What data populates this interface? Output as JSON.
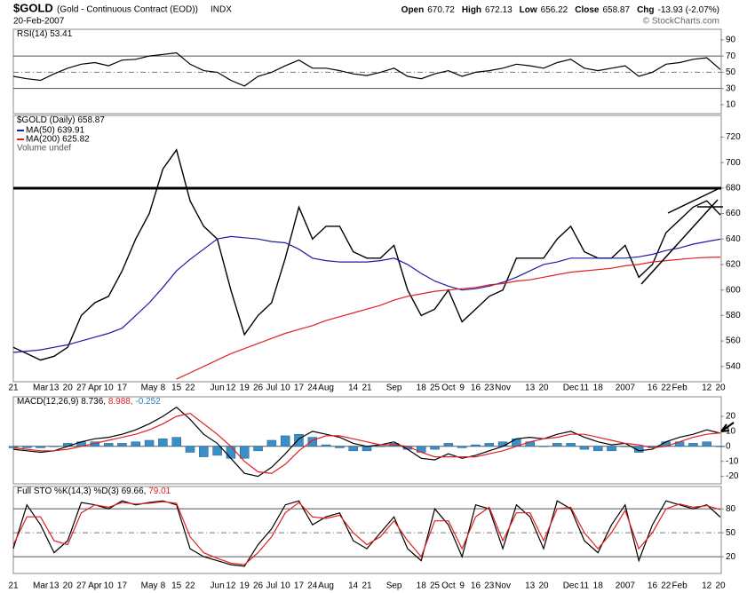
{
  "header": {
    "symbol": "$GOLD",
    "name": "(Gold - Continuous Contract (EOD))",
    "exchange": "INDX",
    "date": "20-Feb-2007",
    "copyright": "© StockCharts.com",
    "quote": [
      {
        "label": "Open",
        "value": "670.72"
      },
      {
        "label": "High",
        "value": "672.13"
      },
      {
        "label": "Low",
        "value": "656.22"
      },
      {
        "label": "Close",
        "value": "658.87"
      },
      {
        "label": "Chg",
        "value": "-13.93 (-2.07%)"
      }
    ]
  },
  "chart_data": [
    {
      "type": "line",
      "legend_parts": [
        {
          "text": "RSI(14) 53.41",
          "color": "#000000"
        }
      ],
      "ylim": [
        -1,
        103
      ],
      "yticks": [
        90,
        70,
        50,
        30,
        10
      ],
      "solid_lines": [
        70,
        30
      ],
      "dashed_lines": [
        50
      ],
      "series": [
        {
          "color": "#000000",
          "values": [
            45,
            42,
            40,
            48,
            55,
            60,
            62,
            58,
            65,
            66,
            70,
            72,
            74,
            60,
            52,
            50,
            40,
            33,
            45,
            50,
            58,
            65,
            55,
            55,
            52,
            48,
            46,
            50,
            55,
            45,
            42,
            48,
            52,
            45,
            50,
            52,
            55,
            60,
            58,
            55,
            62,
            66,
            55,
            52,
            55,
            58,
            45,
            50,
            60,
            62,
            66,
            68,
            53.41
          ]
        }
      ]
    },
    {
      "type": "line",
      "legend_parts": [
        {
          "text": "$GOLD (Daily) 658.87",
          "color": "#000000"
        }
      ],
      "note": "Volume undef",
      "ylim": [
        528,
        737
      ],
      "yticks": [
        720,
        700,
        680,
        660,
        640,
        620,
        600,
        580,
        560,
        540
      ],
      "categories": [
        "21",
        null,
        "Mar",
        "13",
        "20",
        "27",
        "Apr",
        "10",
        "17",
        null,
        "May",
        "8",
        "15",
        "22",
        null,
        "Jun",
        "12",
        "19",
        "26",
        "Jul",
        "10",
        "17",
        "24",
        "Aug",
        null,
        "14",
        "21",
        null,
        "Sep",
        null,
        "18",
        "25",
        "Oct",
        "9",
        "16",
        "23",
        "Nov",
        null,
        "13",
        "20",
        null,
        "Dec",
        "11",
        "18",
        null,
        "2007",
        null,
        "16",
        "22",
        "Feb",
        null,
        "12",
        "20"
      ],
      "series": [
        {
          "color": "#000000",
          "values": [
            555,
            550,
            545,
            548,
            555,
            580,
            590,
            595,
            615,
            640,
            660,
            695,
            710,
            670,
            650,
            640,
            600,
            565,
            580,
            590,
            625,
            665,
            640,
            650,
            650,
            630,
            625,
            625,
            635,
            600,
            580,
            585,
            600,
            575,
            585,
            595,
            600,
            625,
            625,
            625,
            640,
            650,
            630,
            625,
            625,
            635,
            610,
            620,
            645,
            655,
            665,
            670,
            658.87
          ]
        },
        {
          "name": "MA(50) 639.91",
          "color": "#1c1ca0",
          "values": [
            551,
            552,
            553,
            555,
            557,
            560,
            563,
            566,
            570,
            580,
            590,
            602,
            615,
            624,
            632,
            640,
            642,
            641,
            640,
            638,
            637,
            632,
            625,
            623,
            622,
            622,
            622,
            623,
            625,
            620,
            613,
            607,
            603,
            600,
            601,
            603,
            606,
            610,
            615,
            620,
            622,
            625,
            625,
            625,
            625,
            625,
            626,
            628,
            631,
            633,
            636,
            638,
            639.91
          ]
        },
        {
          "name": "MA(200) 625.82",
          "color": "#e02020",
          "values": [
            null,
            null,
            null,
            null,
            null,
            null,
            null,
            null,
            null,
            null,
            null,
            null,
            530,
            535,
            540,
            545,
            550,
            554,
            558,
            562,
            566,
            569,
            572,
            576,
            579,
            582,
            585,
            588,
            592,
            595,
            597,
            599,
            600,
            601,
            602,
            604,
            605,
            607,
            608,
            610,
            612,
            614,
            615,
            616,
            617,
            619,
            620,
            622,
            623,
            624,
            625,
            625.5,
            625.82
          ]
        }
      ]
    },
    {
      "type": "line",
      "legend_parts": [
        {
          "text": "MACD(12,26,9) 8.736,",
          "color": "#000000"
        },
        {
          "text": " 8.988,",
          "color": "#e02020"
        },
        {
          "text": " -0.252",
          "color": "#2a7fc0"
        }
      ],
      "ylim": [
        -25,
        33
      ],
      "yticks": [
        20,
        10,
        0,
        -10,
        -20
      ],
      "solid_lines": [
        0
      ],
      "series": [
        {
          "type": "bar",
          "color": "#3a8fc8",
          "values": [
            -1,
            -1,
            -1,
            0,
            2,
            3,
            3,
            2,
            2,
            3,
            4,
            5,
            6,
            -4,
            -7,
            -6,
            -8,
            -8,
            -3,
            4,
            7,
            8,
            6,
            1,
            -1,
            -3,
            -3,
            0,
            2,
            -2,
            -4,
            -2,
            2,
            -1,
            1,
            2,
            3,
            5,
            3,
            0,
            2,
            2,
            -2,
            -3,
            -3,
            0,
            -4,
            -1,
            3,
            3,
            2,
            3,
            -0.252
          ]
        },
        {
          "color": "#000000",
          "values": [
            -2,
            -3,
            -4,
            -3,
            0,
            3,
            5,
            6,
            8,
            11,
            15,
            20,
            26,
            18,
            8,
            2,
            -8,
            -18,
            -20,
            -14,
            -5,
            5,
            10,
            8,
            6,
            2,
            0,
            1,
            3,
            -2,
            -8,
            -9,
            -5,
            -8,
            -6,
            -3,
            0,
            5,
            6,
            5,
            8,
            10,
            6,
            3,
            1,
            2,
            -3,
            -2,
            3,
            6,
            8,
            11,
            8.736
          ]
        },
        {
          "color": "#e02020",
          "values": [
            -1,
            -2,
            -3,
            -3,
            -2,
            0,
            2,
            4,
            6,
            8,
            11,
            15,
            20,
            22,
            15,
            8,
            0,
            -10,
            -17,
            -18,
            -12,
            -3,
            4,
            7,
            7,
            5,
            3,
            1,
            1,
            0,
            -4,
            -7,
            -7,
            -7,
            -7,
            -5,
            -3,
            0,
            3,
            5,
            6,
            8,
            8,
            6,
            4,
            2,
            1,
            -1,
            0,
            3,
            6,
            8,
            8.988
          ]
        }
      ]
    },
    {
      "type": "line",
      "legend_parts": [
        {
          "text": "Full STO %K(14,3) %D(3) 69.66,",
          "color": "#000000"
        },
        {
          "text": " 79.01",
          "color": "#e02020"
        }
      ],
      "ylim": [
        -1,
        108
      ],
      "yticks": [
        80,
        50,
        20
      ],
      "solid_lines": [
        80,
        20
      ],
      "dashed_lines": [
        50
      ],
      "series": [
        {
          "color": "#000000",
          "values": [
            30,
            85,
            60,
            25,
            40,
            88,
            85,
            80,
            90,
            85,
            88,
            90,
            85,
            30,
            20,
            15,
            10,
            8,
            35,
            55,
            85,
            90,
            60,
            70,
            75,
            40,
            30,
            50,
            70,
            30,
            15,
            80,
            60,
            20,
            85,
            80,
            30,
            85,
            70,
            30,
            90,
            80,
            40,
            25,
            60,
            85,
            15,
            60,
            90,
            85,
            80,
            85,
            69.66
          ]
        },
        {
          "color": "#e02020",
          "values": [
            35,
            70,
            70,
            40,
            35,
            75,
            85,
            82,
            88,
            86,
            87,
            89,
            87,
            45,
            25,
            18,
            12,
            10,
            25,
            45,
            75,
            88,
            70,
            68,
            72,
            50,
            35,
            45,
            65,
            40,
            20,
            65,
            65,
            30,
            70,
            82,
            40,
            75,
            75,
            40,
            80,
            82,
            50,
            30,
            50,
            78,
            30,
            50,
            80,
            86,
            82,
            84,
            79.01
          ]
        }
      ]
    }
  ]
}
